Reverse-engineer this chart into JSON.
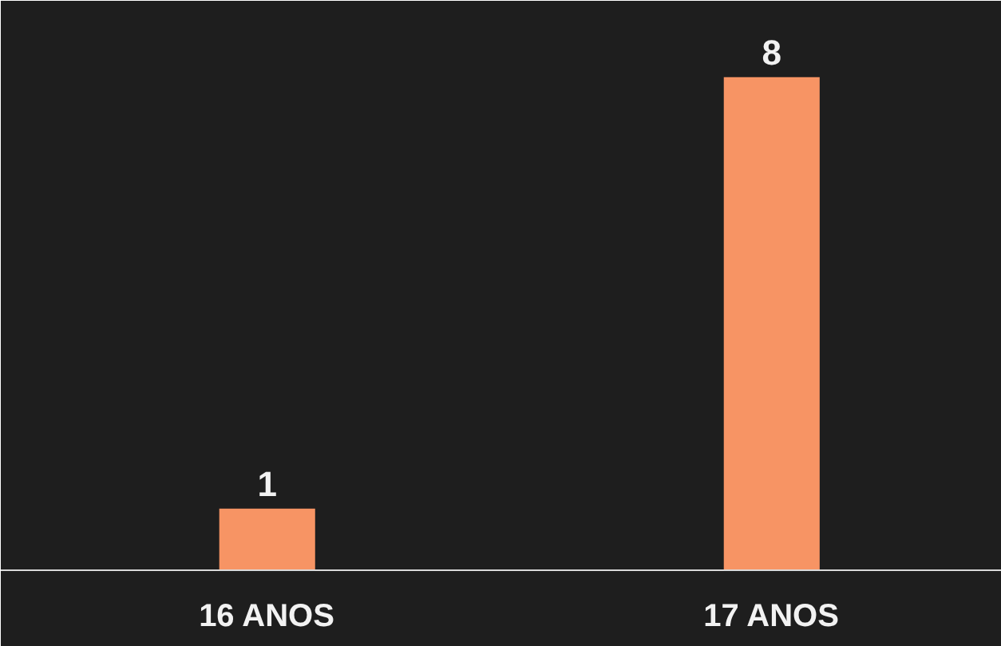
{
  "chart_data": {
    "type": "bar",
    "categories": [
      "16 ANOS",
      "17 ANOS"
    ],
    "series": [
      {
        "color": "#f79464",
        "values": [
          1,
          8
        ]
      }
    ],
    "data_labels": true,
    "grid": false,
    "tick_labels": "x"
  }
}
